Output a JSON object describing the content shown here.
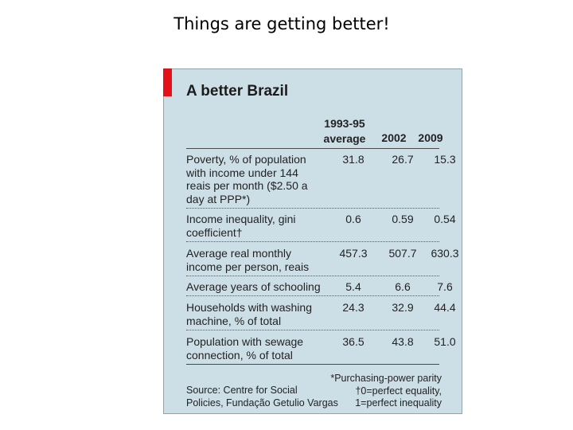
{
  "slide": {
    "title": "Things are getting better!"
  },
  "panel": {
    "title": "A better Brazil",
    "headers": {
      "col1_line1": "1993-95",
      "col1_line2": "average",
      "col2": "2002",
      "col3": "2009"
    },
    "rows": [
      {
        "label": "Poverty, % of population with income under 144 reais per month ($2.50 a day at PPP*)",
        "v1": "31.8",
        "v2": "26.7",
        "v3": "15.3"
      },
      {
        "label": "Income inequality, gini coefficient†",
        "v1": "0.6",
        "v2": "0.59",
        "v3": "0.54"
      },
      {
        "label": "Average real monthly income per person, reais",
        "v1": "457.3",
        "v2": "507.7",
        "v3": "630.3"
      },
      {
        "label": "Average years of schooling",
        "v1": "5.4",
        "v2": "6.6",
        "v3": "7.6"
      },
      {
        "label": "Households with washing machine, % of total",
        "v1": "24.3",
        "v2": "32.9",
        "v3": "44.4"
      },
      {
        "label": "Population with sewage connection, % of total",
        "v1": "36.5",
        "v2": "43.8",
        "v3": "51.0"
      }
    ],
    "footnotes": {
      "ppp": "*Purchasing-power parity",
      "gini_line1": "†0=perfect equality,",
      "gini_line2": "1=perfect inequality",
      "source_line1": "Source: Centre for Social",
      "source_line2": "Policies, Fundação Getulio Vargas"
    }
  }
}
